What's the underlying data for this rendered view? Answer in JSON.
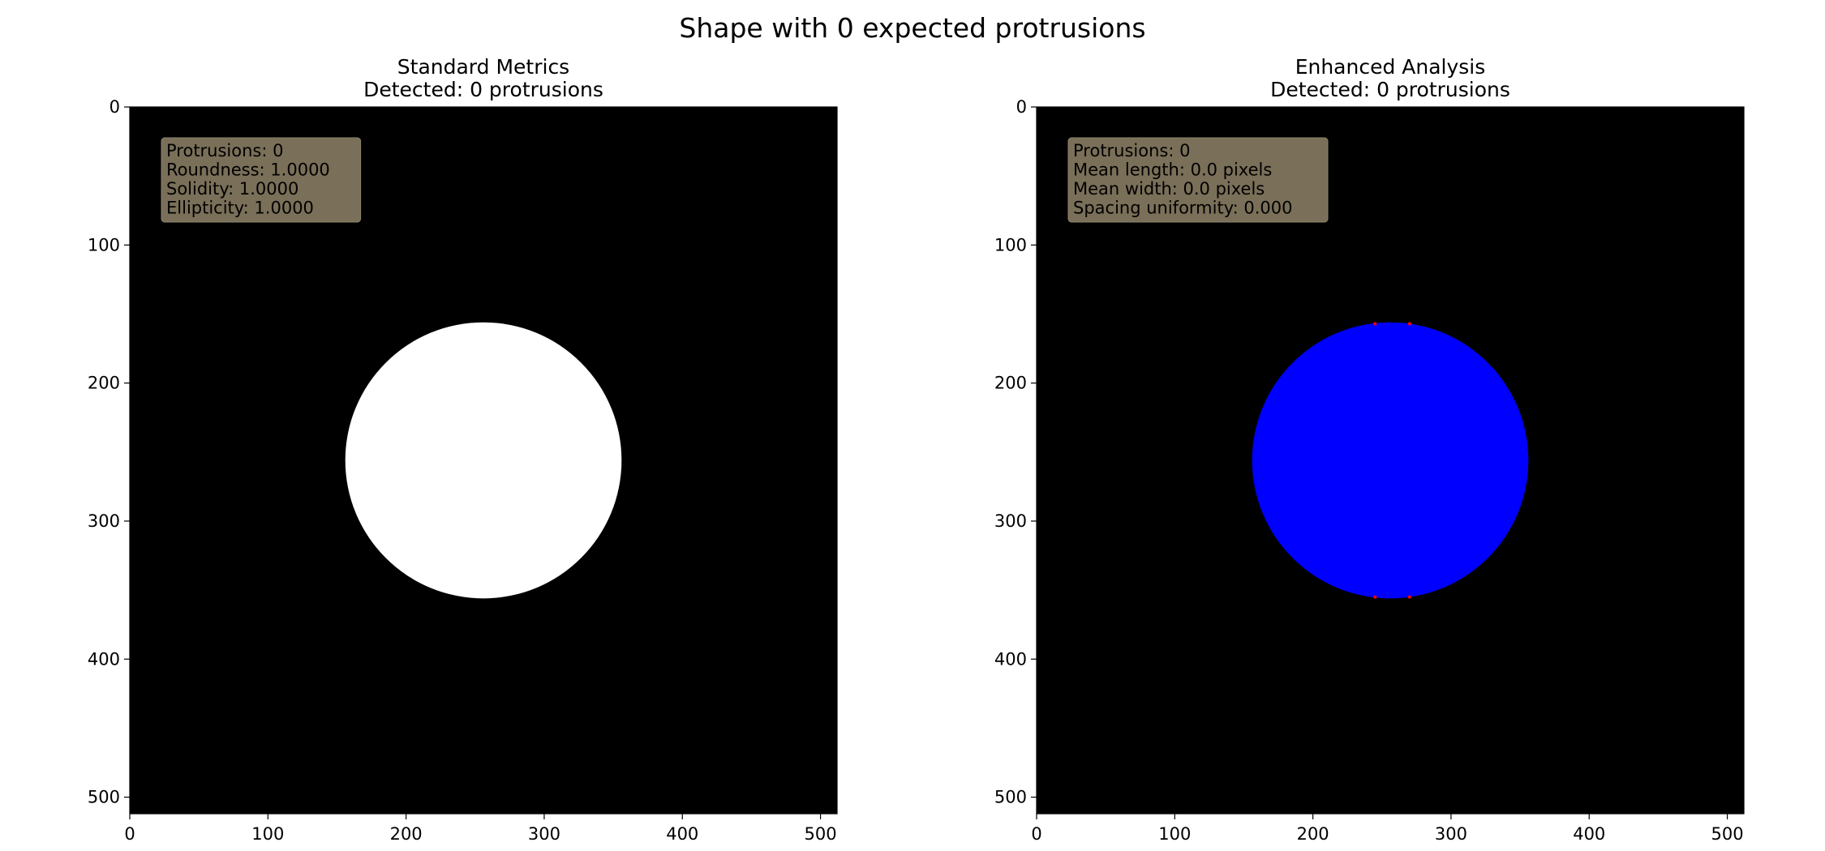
{
  "figure": {
    "suptitle": "Shape with 0 expected protrusions",
    "background": "#ffffff"
  },
  "panels": [
    {
      "title_line1": "Standard Metrics",
      "title_line2": "Detected: 0 protrusions",
      "info_lines": [
        "Protrusions: 0",
        "Roundness: 1.0000",
        "Solidity: 1.0000",
        "Ellipticity: 1.0000"
      ],
      "shape_color": "#ffffff",
      "marker_color": null
    },
    {
      "title_line1": "Enhanced Analysis",
      "title_line2": "Detected: 0 protrusions",
      "info_lines": [
        "Protrusions: 0",
        "Mean length: 0.0 pixels",
        "Mean width: 0.0 pixels",
        "Spacing uniformity: 0.000"
      ],
      "shape_color": "#0000ff",
      "marker_color": "#ff0000"
    }
  ],
  "chart_data": [
    {
      "type": "image",
      "title": "Standard Metrics\nDetected: 0 protrusions",
      "image_size": [
        512,
        512
      ],
      "xlim": [
        0,
        512
      ],
      "ylim": [
        512,
        0
      ],
      "xticks": [
        0,
        100,
        200,
        300,
        400,
        500
      ],
      "yticks": [
        0,
        100,
        200,
        300,
        400,
        500
      ],
      "background_color": "#000000",
      "shape": {
        "kind": "circle",
        "center": [
          256,
          256
        ],
        "radius": 100,
        "color": "#ffffff"
      },
      "annotation": [
        "Protrusions: 0",
        "Roundness: 1.0000",
        "Solidity: 1.0000",
        "Ellipticity: 1.0000"
      ],
      "annotation_box_color": "#7a6f58"
    },
    {
      "type": "image",
      "title": "Enhanced Analysis\nDetected: 0 protrusions",
      "image_size": [
        512,
        512
      ],
      "xlim": [
        0,
        512
      ],
      "ylim": [
        512,
        0
      ],
      "xticks": [
        0,
        100,
        200,
        300,
        400,
        500
      ],
      "yticks": [
        0,
        100,
        200,
        300,
        400,
        500
      ],
      "background_color": "#000000",
      "shape": {
        "kind": "circle",
        "center": [
          256,
          256
        ],
        "radius": 100,
        "color": "#0000ff"
      },
      "boundary_markers": {
        "color": "#ff0000",
        "points": [
          [
            245,
            157
          ],
          [
            270,
            157
          ],
          [
            245,
            355
          ],
          [
            270,
            355
          ]
        ]
      },
      "annotation": [
        "Protrusions: 0",
        "Mean length: 0.0 pixels",
        "Mean width: 0.0 pixels",
        "Spacing uniformity: 0.000"
      ],
      "annotation_box_color": "#7a6f58"
    }
  ]
}
